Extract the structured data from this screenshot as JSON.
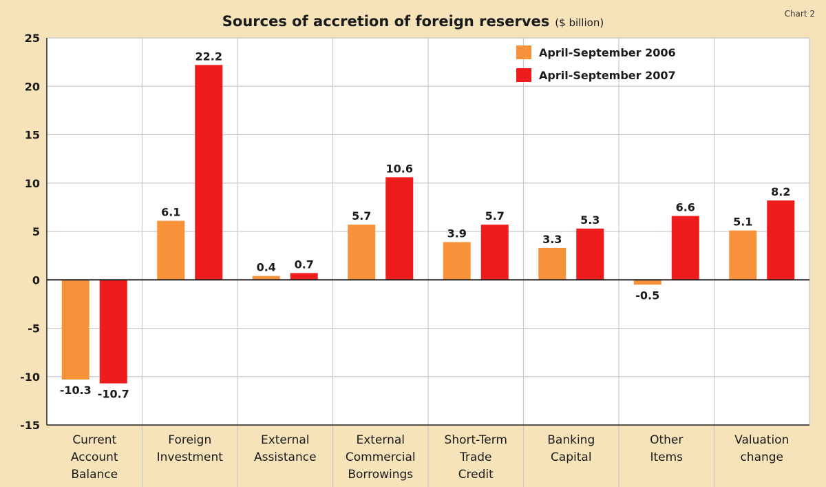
{
  "chart_no": "Chart 2",
  "colors": {
    "background": "#f6e3b9",
    "plot": "#ffffff",
    "grid": "#c8c8c8",
    "axis": "#222222"
  },
  "chart_data": {
    "type": "bar",
    "title": "Sources of accretion of foreign reserves",
    "unit": "($ billion)",
    "categories": [
      [
        "Current",
        "Account",
        "Balance"
      ],
      [
        "Foreign",
        "Investment"
      ],
      [
        "External",
        "Assistance"
      ],
      [
        "External",
        "Commercial",
        "Borrowings"
      ],
      [
        "Short-Term",
        "Trade",
        "Credit"
      ],
      [
        "Banking",
        "Capital"
      ],
      [
        "Other",
        "Items"
      ],
      [
        "Valuation",
        "change"
      ]
    ],
    "series": [
      {
        "name": "April-September 2006",
        "color": "#f7923a",
        "values": [
          -10.3,
          6.1,
          0.4,
          5.7,
          3.9,
          3.3,
          -0.5,
          5.1
        ]
      },
      {
        "name": "April-September 2007",
        "color": "#ee1c1c",
        "values": [
          -10.7,
          22.2,
          0.7,
          10.6,
          5.7,
          5.3,
          6.6,
          8.2
        ]
      }
    ],
    "ylim": [
      -15,
      25
    ],
    "yticks": [
      -15,
      -10,
      -5,
      0,
      5,
      10,
      15,
      20,
      25
    ],
    "grid": true,
    "legend": "top-right"
  }
}
